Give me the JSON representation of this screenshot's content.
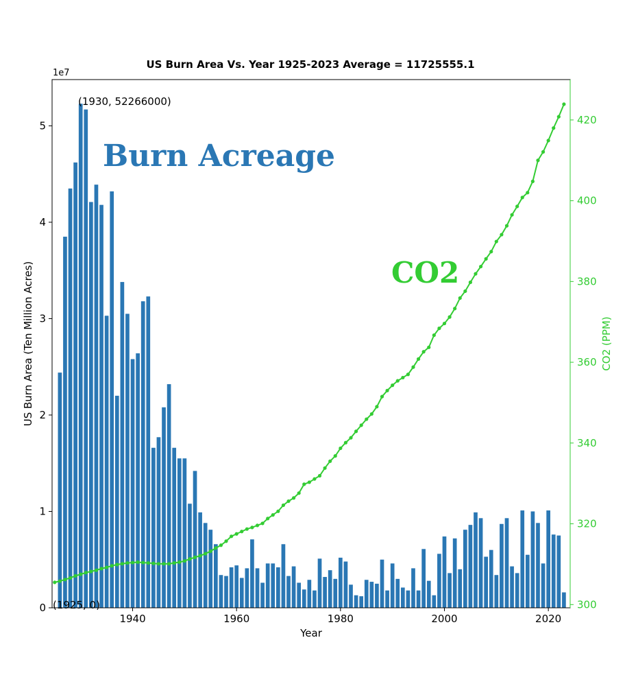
{
  "chart_data": {
    "type": "bar",
    "title": "US Burn Area Vs. Year 1925-2023 Average = 11725555.1",
    "xlabel": "Year",
    "ylabel": "US Burn Area (Ten Million Acres)",
    "y2label": "CO2 (PPM)",
    "offset_text": "1e7",
    "xlim": [
      1924.5,
      2024.2
    ],
    "ylim": [
      0,
      5.48
    ],
    "y2lim": [
      299.2,
      430.0
    ],
    "x_ticks": [
      "1940",
      "1960",
      "1980",
      "2000",
      "2020"
    ],
    "y_ticks": [
      "0",
      "1",
      "2",
      "3",
      "4",
      "5"
    ],
    "y2_ticks": [
      "300",
      "320",
      "340",
      "360",
      "380",
      "400",
      "420"
    ],
    "annotations": {
      "max": "(1930, 52266000)",
      "min": "(1925, 0)",
      "burn": "Burn Acreage",
      "co2": "CO2"
    },
    "colors": {
      "bars": "#2a77b4",
      "co2": "#33cc33",
      "co2_label": "#33cc33",
      "burn_label": "#2a77b4"
    },
    "grid": false,
    "series": [
      {
        "name": "Burn Acreage",
        "type": "bar",
        "axis": "left",
        "x": [
          1926,
          1927,
          1928,
          1929,
          1930,
          1931,
          1932,
          1933,
          1934,
          1935,
          1936,
          1937,
          1938,
          1939,
          1940,
          1941,
          1942,
          1943,
          1944,
          1945,
          1946,
          1947,
          1948,
          1949,
          1950,
          1951,
          1952,
          1953,
          1954,
          1955,
          1956,
          1957,
          1958,
          1959,
          1960,
          1961,
          1962,
          1963,
          1964,
          1965,
          1966,
          1967,
          1968,
          1969,
          1970,
          1971,
          1972,
          1973,
          1974,
          1975,
          1976,
          1977,
          1978,
          1979,
          1980,
          1981,
          1982,
          1983,
          1984,
          1985,
          1986,
          1987,
          1988,
          1989,
          1990,
          1991,
          1992,
          1993,
          1994,
          1995,
          1996,
          1997,
          1998,
          1999,
          2000,
          2001,
          2002,
          2003,
          2004,
          2005,
          2006,
          2007,
          2008,
          2009,
          2010,
          2011,
          2012,
          2013,
          2014,
          2015,
          2016,
          2017,
          2018,
          2019,
          2020,
          2021,
          2022,
          2023
        ],
        "values": [
          2.44,
          3.85,
          4.35,
          4.62,
          5.23,
          5.17,
          4.21,
          4.39,
          4.18,
          3.03,
          4.32,
          2.2,
          3.38,
          3.05,
          2.58,
          2.64,
          3.18,
          3.23,
          1.66,
          1.77,
          2.08,
          2.32,
          1.66,
          1.55,
          1.55,
          1.08,
          1.42,
          0.99,
          0.88,
          0.81,
          0.66,
          0.34,
          0.33,
          0.42,
          0.44,
          0.31,
          0.41,
          0.71,
          0.41,
          0.26,
          0.46,
          0.46,
          0.42,
          0.66,
          0.33,
          0.43,
          0.26,
          0.19,
          0.29,
          0.18,
          0.51,
          0.32,
          0.39,
          0.3,
          0.52,
          0.48,
          0.24,
          0.13,
          0.12,
          0.29,
          0.27,
          0.25,
          0.5,
          0.18,
          0.46,
          0.3,
          0.21,
          0.18,
          0.41,
          0.18,
          0.61,
          0.28,
          0.13,
          0.56,
          0.74,
          0.36,
          0.72,
          0.4,
          0.81,
          0.86,
          0.99,
          0.93,
          0.53,
          0.6,
          0.34,
          0.87,
          0.93,
          0.43,
          0.36,
          1.01,
          0.55,
          1.0,
          0.88,
          0.46,
          1.01,
          0.76,
          0.75,
          0.16
        ]
      },
      {
        "name": "CO2",
        "type": "line",
        "axis": "right",
        "x": [
          1925,
          1926,
          1927,
          1928,
          1929,
          1930,
          1931,
          1932,
          1933,
          1934,
          1935,
          1936,
          1937,
          1938,
          1939,
          1940,
          1941,
          1942,
          1943,
          1944,
          1945,
          1946,
          1947,
          1948,
          1949,
          1950,
          1951,
          1952,
          1953,
          1954,
          1955,
          1956,
          1957,
          1958,
          1959,
          1960,
          1961,
          1962,
          1963,
          1964,
          1965,
          1966,
          1967,
          1968,
          1969,
          1970,
          1971,
          1972,
          1973,
          1974,
          1975,
          1976,
          1977,
          1978,
          1979,
          1980,
          1981,
          1982,
          1983,
          1984,
          1985,
          1986,
          1987,
          1988,
          1989,
          1990,
          1991,
          1992,
          1993,
          1994,
          1995,
          1996,
          1997,
          1998,
          1999,
          2000,
          2001,
          2002,
          2003,
          2004,
          2005,
          2006,
          2007,
          2008,
          2009,
          2010,
          2011,
          2012,
          2013,
          2014,
          2015,
          2016,
          2017,
          2018,
          2019,
          2020,
          2021,
          2022,
          2023
        ],
        "values": [
          305.5,
          305.8,
          306.2,
          306.6,
          307.1,
          307.5,
          307.9,
          308.2,
          308.5,
          308.9,
          309.2,
          309.6,
          309.9,
          310.1,
          310.3,
          310.4,
          310.5,
          310.4,
          310.3,
          310.2,
          310.1,
          310.1,
          310.1,
          310.3,
          310.5,
          310.8,
          311.3,
          311.7,
          312.1,
          312.6,
          313.2,
          314.0,
          314.7,
          315.7,
          316.9,
          317.5,
          318.1,
          318.7,
          319.1,
          319.6,
          320.1,
          321.3,
          322.2,
          323.1,
          324.6,
          325.6,
          326.4,
          327.6,
          329.8,
          330.3,
          331.1,
          331.9,
          333.8,
          335.5,
          336.8,
          338.7,
          340.1,
          341.3,
          342.9,
          344.4,
          345.9,
          347.2,
          349.0,
          351.5,
          353.0,
          354.3,
          355.4,
          356.2,
          357.0,
          358.8,
          360.8,
          362.6,
          363.7,
          366.7,
          368.4,
          369.6,
          371.2,
          373.3,
          375.9,
          377.6,
          379.8,
          381.9,
          383.7,
          385.6,
          387.4,
          389.9,
          391.6,
          393.8,
          396.5,
          398.6,
          400.8,
          402.0,
          404.8,
          410.0,
          412.1,
          414.9,
          418.0,
          420.8,
          423.9
        ]
      }
    ]
  }
}
